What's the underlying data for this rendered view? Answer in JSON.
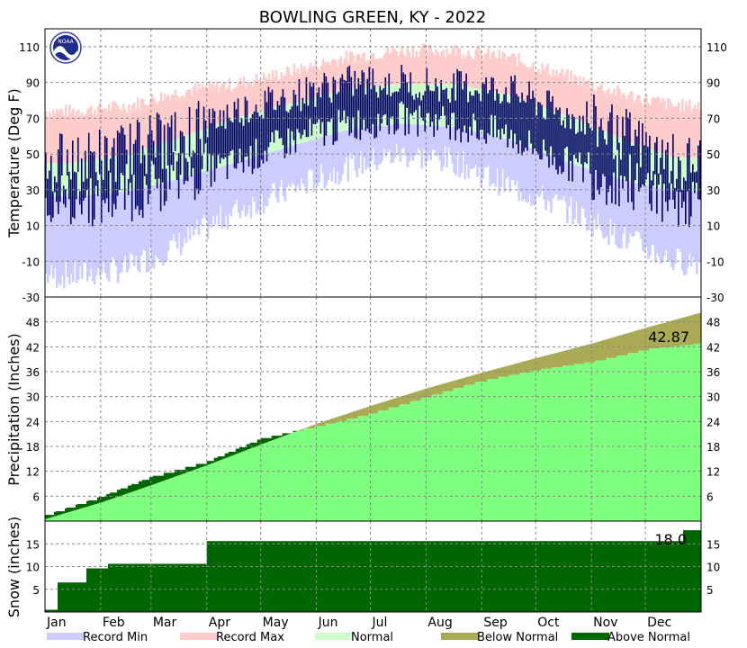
{
  "title": "BOWLING GREEN, KY - 2022",
  "colors": {
    "record_min": "#ccccff",
    "record_max": "#ffcccc",
    "normal": "#ccffcc",
    "below_normal": "#aaaa55",
    "above_normal": "#006600",
    "precip_actual": "#7fff7f",
    "observed": "#000066"
  },
  "logo": {
    "name": "noaa-logo",
    "text": "NOAA"
  },
  "chart_data": [
    {
      "type": "area",
      "name": "temperature",
      "ylabel": "Temperature (Deg F)",
      "ylim": [
        -30,
        120
      ],
      "yticks": [
        -30,
        -10,
        10,
        30,
        50,
        70,
        90,
        110
      ],
      "grid": true,
      "record_max_monthly": [
        74,
        77,
        85,
        89,
        96,
        104,
        108,
        108,
        104,
        94,
        84,
        77
      ],
      "normal_high_monthly": [
        45,
        50,
        59,
        70,
        78,
        86,
        89,
        89,
        83,
        72,
        59,
        48
      ],
      "normal_low_monthly": [
        26,
        29,
        36,
        45,
        54,
        63,
        67,
        65,
        58,
        46,
        36,
        29
      ],
      "record_min_monthly": [
        -18,
        -14,
        0,
        18,
        30,
        42,
        50,
        46,
        32,
        20,
        4,
        -10
      ],
      "observed_high_monthly": [
        45,
        52,
        60,
        74,
        82,
        90,
        91,
        88,
        86,
        72,
        62,
        45
      ],
      "observed_low_monthly": [
        24,
        28,
        37,
        44,
        57,
        66,
        70,
        67,
        60,
        45,
        36,
        25
      ]
    },
    {
      "type": "area",
      "name": "precipitation",
      "ylabel": "Precipitation (Inches)",
      "ylim": [
        0,
        54
      ],
      "yticks": [
        6,
        12,
        18,
        24,
        30,
        36,
        42,
        48
      ],
      "grid": true,
      "normal_cumulative_month_start": [
        0.5,
        4.5,
        8.7,
        13.5,
        18.5,
        23.5,
        27.8,
        32.0,
        35.8,
        39.3,
        42.8,
        46.6,
        50.3
      ],
      "actual_cumulative_month_start": [
        1.5,
        6.0,
        10.8,
        14.5,
        20.0,
        23.0,
        26.0,
        30.0,
        34.0,
        36.5,
        38.5,
        41.5,
        42.87
      ],
      "annotation": "42.87"
    },
    {
      "type": "area",
      "name": "snow",
      "ylabel": "Snow (inches)",
      "ylim": [
        0,
        20
      ],
      "yticks": [
        5,
        10,
        15
      ],
      "grid": true,
      "steps": [
        [
          0,
          0.5
        ],
        [
          7,
          6.5
        ],
        [
          23,
          9.6
        ],
        [
          35,
          10.6
        ],
        [
          90,
          15.6
        ],
        [
          355,
          18.0
        ]
      ],
      "annotation": "18.0"
    }
  ],
  "x_axis": {
    "months": [
      "Jan",
      "Feb",
      "Mar",
      "Apr",
      "May",
      "Jun",
      "Jul",
      "Aug",
      "Sep",
      "Oct",
      "Nov",
      "Dec"
    ],
    "month_start_days": [
      0,
      31,
      59,
      90,
      120,
      151,
      181,
      212,
      243,
      273,
      304,
      334
    ],
    "days_in_year": 365
  },
  "legend": [
    {
      "label": "Record Min",
      "color": "#ccccff"
    },
    {
      "label": "Record Max",
      "color": "#ffcccc"
    },
    {
      "label": "Normal",
      "color": "#ccffcc"
    },
    {
      "label": "Below Normal",
      "color": "#aaaa55"
    },
    {
      "label": "Above Normal",
      "color": "#006600"
    }
  ]
}
